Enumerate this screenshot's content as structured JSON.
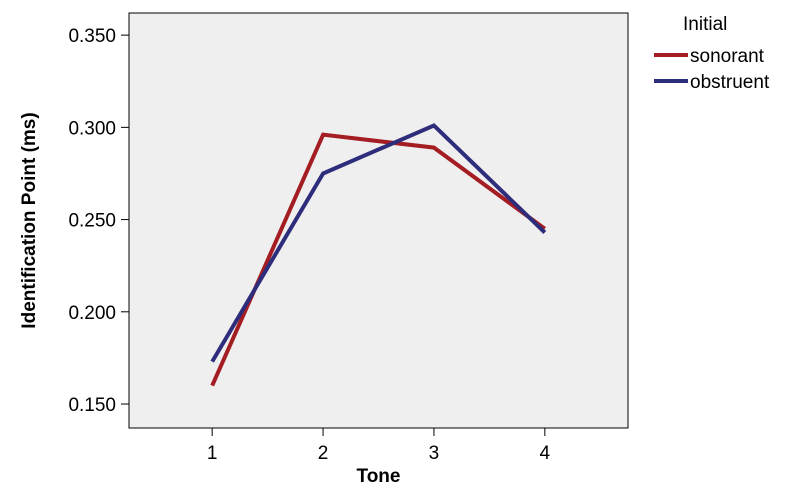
{
  "chart_data": {
    "type": "line",
    "title": "",
    "xlabel": "Tone",
    "ylabel": "Identification Point (ms)",
    "x": [
      1,
      2,
      3,
      4
    ],
    "xlim": [
      0.25,
      4.75
    ],
    "ylim": [
      0.137,
      0.362
    ],
    "yticks": [
      0.15,
      0.2,
      0.25,
      0.3,
      0.35
    ],
    "ytick_labels": [
      "0.150",
      "0.200",
      "0.250",
      "0.300",
      "0.350"
    ],
    "xtick_labels": [
      "1",
      "2",
      "3",
      "4"
    ],
    "grid": false,
    "legend": {
      "title": "Initial",
      "placement": "right"
    },
    "series": [
      {
        "name": "sonorant",
        "color": "#a31d22",
        "values": [
          0.16,
          0.296,
          0.289,
          0.245
        ]
      },
      {
        "name": "obstruent",
        "color": "#2e2d7b",
        "values": [
          0.173,
          0.275,
          0.301,
          0.243
        ]
      }
    ]
  },
  "colors": {
    "plot_background": "#efefef",
    "axis": "#000000"
  }
}
